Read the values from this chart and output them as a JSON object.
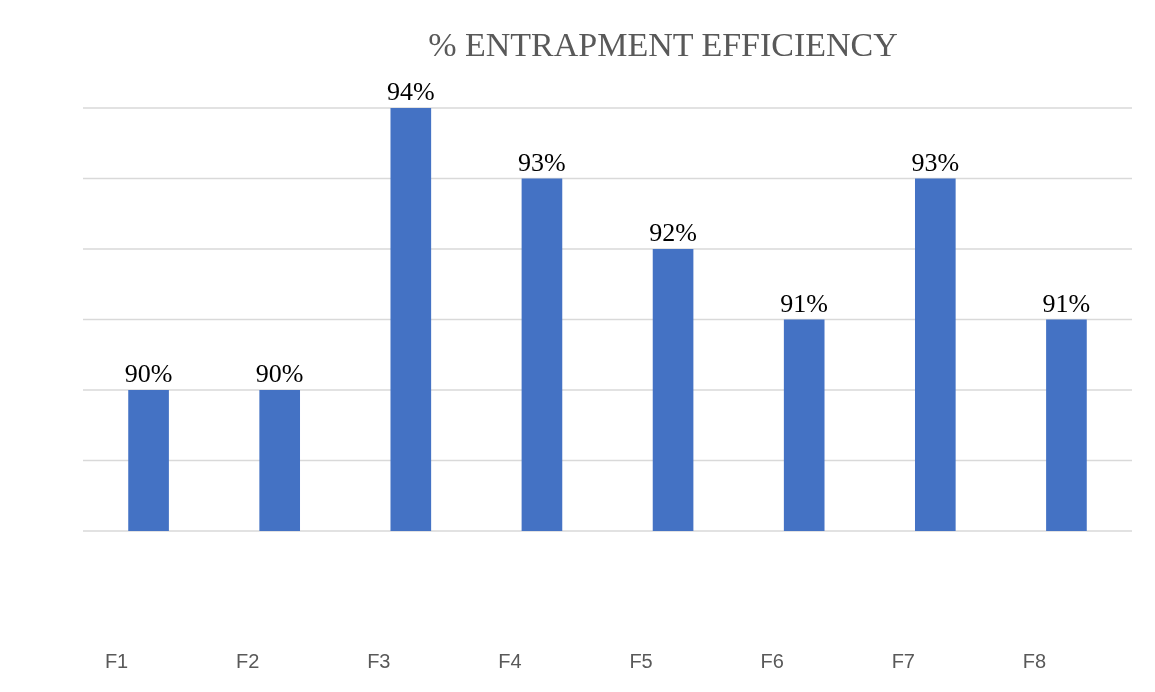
{
  "chart_data": {
    "type": "bar",
    "title": "% ENTRAPMENT EFFICIENCY",
    "categories": [
      "F1",
      "F2",
      "F3",
      "F4",
      "F5",
      "F6",
      "F7",
      "F8"
    ],
    "values": [
      90,
      90,
      94,
      93,
      92,
      91,
      93,
      91
    ],
    "value_labels": [
      "90%",
      "90%",
      "94%",
      "93%",
      "92%",
      "91%",
      "93%",
      "91%"
    ],
    "color": "#4472c4",
    "ylim": [
      88,
      94
    ],
    "yticks": [
      {
        "value": 88,
        "label": null
      },
      {
        "value": 89,
        "label": null
      },
      {
        "value": 90,
        "label": null
      },
      {
        "value": 91,
        "label": null
      },
      {
        "value": 92,
        "label": null
      },
      {
        "value": 93,
        "label": null
      },
      {
        "value": 94,
        "label": null
      }
    ],
    "grid": "y",
    "tick_labels": "x"
  }
}
